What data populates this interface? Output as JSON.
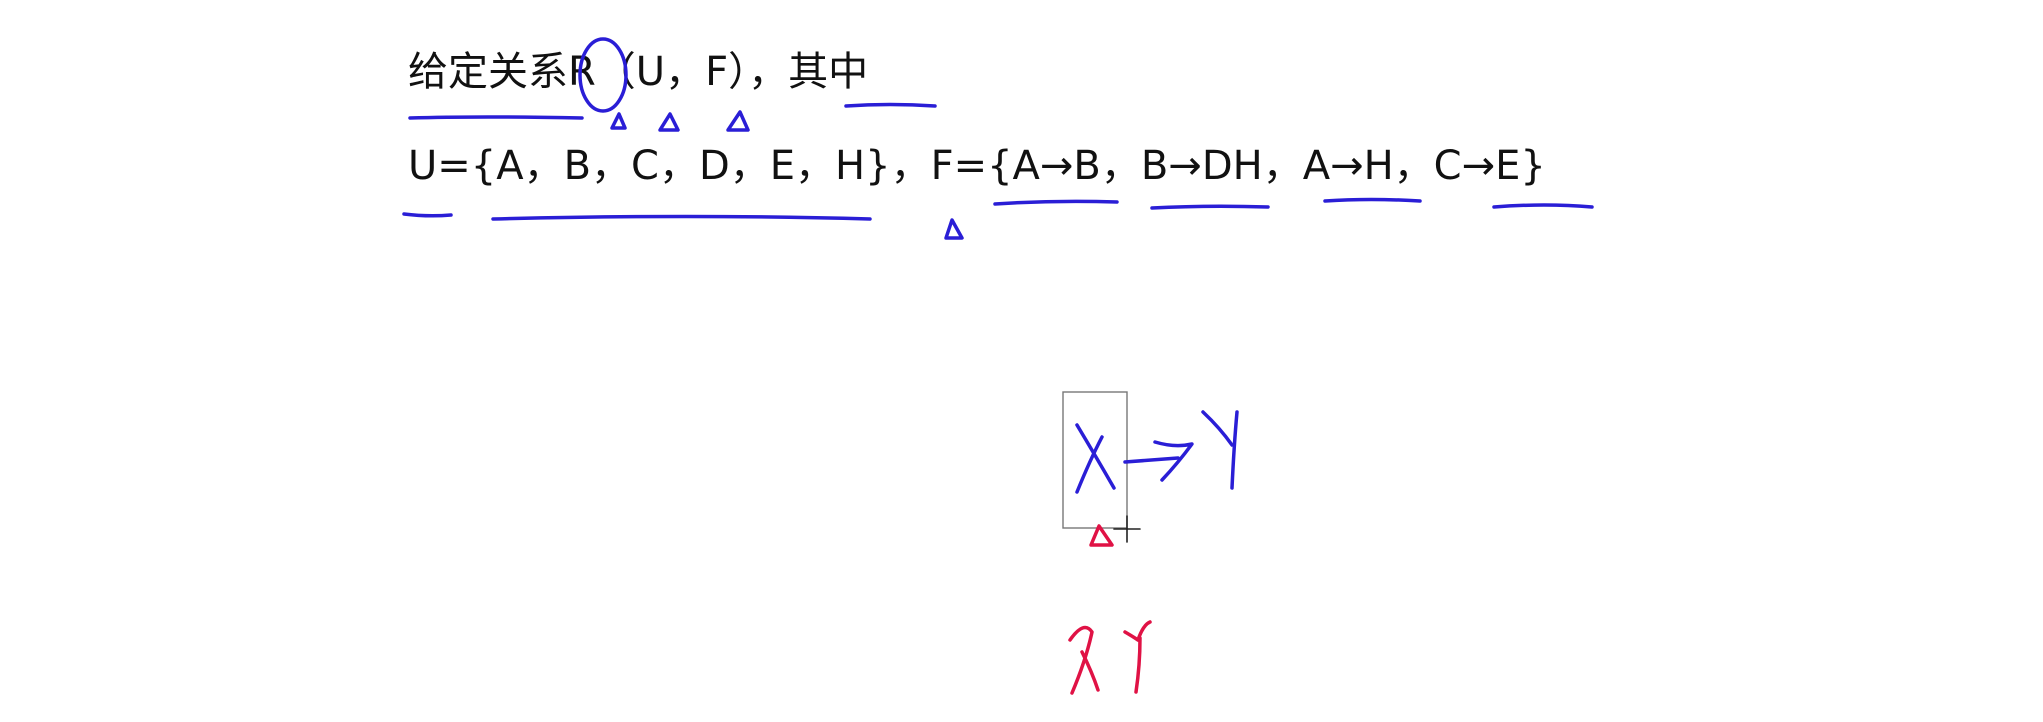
{
  "slide": {
    "line1": "给定关系R（U，F），其中",
    "line2": "U={A，B，C，D，E，H}，F={A→B，B→DH，A→H，C→E}"
  },
  "ink_colors": {
    "blue": "#2a1ed6",
    "red": "#e01245",
    "selection_box": "#777777"
  }
}
